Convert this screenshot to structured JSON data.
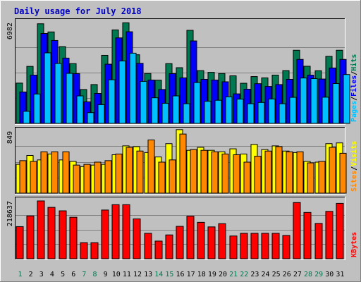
{
  "chart_data": {
    "type": "bar",
    "title": "Daily usage for July 2018",
    "categories": [
      "1",
      "2",
      "3",
      "4",
      "5",
      "6",
      "7",
      "8",
      "9",
      "10",
      "11",
      "12",
      "13",
      "14",
      "15",
      "16",
      "17",
      "18",
      "19",
      "20",
      "21",
      "22",
      "23",
      "24",
      "25",
      "26",
      "27",
      "28",
      "29",
      "30",
      "31"
    ],
    "weekend_days": [
      "1",
      "7",
      "8",
      "14",
      "15",
      "21",
      "22",
      "28",
      "29"
    ],
    "grid": true,
    "axis_scale": "linear",
    "colors": {
      "hits": "#007850",
      "files": "#0000ff",
      "pages": "#00c0ff",
      "visits": "#ffff00",
      "sites": "#ff8800",
      "kbytes": "#ff0000",
      "background": "#c0c0c0",
      "weekday_label": "#000000",
      "weekend_label": "#007850"
    },
    "panels": [
      {
        "id": "usage",
        "ymax_label": "6982",
        "ylim": [
          0,
          6982
        ],
        "legend_parts": [
          {
            "text": "Pages",
            "color": "#00c0ff"
          },
          {
            "text": "/",
            "color": "#000000"
          },
          {
            "text": "Files",
            "color": "#0000ff"
          },
          {
            "text": "/",
            "color": "#000000"
          },
          {
            "text": "Hits",
            "color": "#007850"
          }
        ],
        "series": [
          {
            "color": "#007850",
            "values": [
              2770,
              3920,
              6850,
              6290,
              5280,
              4110,
              2330,
              2670,
              4680,
              6430,
              6920,
              4720,
              3430,
              2970,
              4110,
              3830,
              6400,
              3630,
              3510,
              3430,
              3270,
              2760,
              3220,
              3130,
              3320,
              3630,
              5030,
              3930,
              3620,
              4610,
              5030
            ]
          },
          {
            "color": "#0000ff",
            "values": [
              2160,
              3320,
              6180,
              5700,
              4490,
              3420,
              1480,
              2060,
              4070,
              5880,
              6300,
              4130,
              2980,
              2330,
              3420,
              3130,
              5670,
              3030,
              2980,
              2860,
              2030,
              2350,
              2730,
              2540,
              2670,
              3030,
              4400,
              3320,
              3050,
              3810,
              4400
            ]
          },
          {
            "color": "#00c0ff",
            "values": [
              830,
              2020,
              4850,
              4120,
              3440,
              1890,
              740,
              1290,
              3000,
              4290,
              4830,
              2890,
              1760,
              1380,
              1890,
              1350,
              2810,
              1520,
              1590,
              1830,
              1670,
              1350,
              1440,
              1680,
              1350,
              1790,
              3120,
              3080,
              1800,
              2740,
              3360
            ]
          }
        ]
      },
      {
        "id": "visits",
        "ymax_label": "849",
        "ylim": [
          0,
          849
        ],
        "legend_parts": [
          {
            "text": "Sites",
            "color": "#ff8800"
          },
          {
            "text": "/",
            "color": "#000000"
          },
          {
            "text": "Visits",
            "color": "#ffff00"
          }
        ],
        "series": [
          {
            "color": "#ffff00",
            "values": [
              390,
              510,
              450,
              530,
              450,
              430,
              360,
              380,
              390,
              520,
              640,
              630,
              550,
              490,
              670,
              860,
              580,
              620,
              580,
              560,
              600,
              530,
              660,
              590,
              640,
              570,
              550,
              430,
              420,
              670,
              680
            ]
          },
          {
            "color": "#ff8800",
            "values": [
              440,
              430,
              560,
              560,
              560,
              380,
              390,
              420,
              440,
              530,
              620,
              570,
              720,
              420,
              450,
              800,
              590,
              580,
              560,
              530,
              520,
              420,
              500,
              570,
              630,
              560,
              560,
              410,
              430,
              620,
              540
            ]
          }
        ]
      },
      {
        "id": "kbytes",
        "ymax_label": "218637",
        "ylim": [
          0,
          218637
        ],
        "legend_parts": [
          {
            "text": "KBytes",
            "color": "#ff0000"
          }
        ],
        "series": [
          {
            "color": "#ff0000",
            "values": [
              120000,
              160000,
              216000,
              192000,
              179000,
              155000,
              60000,
              60000,
              182000,
              202000,
              202000,
              149000,
              95000,
              66000,
              89000,
              121000,
              159000,
              136000,
              119000,
              131000,
              85000,
              95000,
              95000,
              95000,
              95000,
              87000,
              210000,
              173000,
              132000,
              177000,
              207000
            ]
          }
        ]
      }
    ]
  }
}
